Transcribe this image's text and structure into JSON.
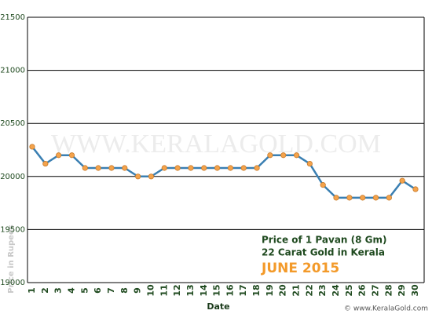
{
  "chart_data": {
    "type": "line",
    "legend_lines": [
      "Price of 1 Pavan (8 Gm)",
      "22 Carat Gold in Kerala"
    ],
    "legend_month": "JUNE 2015",
    "y_label": "Price in Rupees",
    "x_label": "Date",
    "watermark": "WWW.KERALAGOLD.COM",
    "credit": "© www.KeralaGold.com",
    "categories": [
      "1",
      "2",
      "3",
      "4",
      "5",
      "6",
      "7",
      "8",
      "9",
      "10",
      "11",
      "12",
      "13",
      "14",
      "15",
      "16",
      "17",
      "18",
      "19",
      "20",
      "21",
      "22",
      "23",
      "24",
      "25",
      "26",
      "27",
      "28",
      "29",
      "30"
    ],
    "series": [
      {
        "name": "Price",
        "color": "#3a7fb2",
        "marker_color": "#f4a34c",
        "values": [
          20280,
          20120,
          20200,
          20200,
          20080,
          20080,
          20080,
          20080,
          20000,
          20000,
          20080,
          20080,
          20080,
          20080,
          20080,
          20080,
          20080,
          20080,
          20200,
          20200,
          20200,
          20120,
          19920,
          19800,
          19800,
          19800,
          19800,
          19800,
          19960,
          19880
        ]
      }
    ],
    "ylim": [
      19000,
      21500
    ],
    "yticks": [
      19000,
      19500,
      20000,
      20500,
      21000,
      21500
    ],
    "grid": true
  }
}
